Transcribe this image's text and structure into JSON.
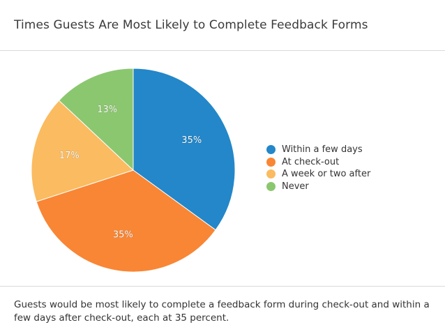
{
  "chart_data": {
    "type": "pie",
    "title": "Times Guests Are Most Likely to Complete Feedback Forms",
    "legend_position": "right",
    "slices": [
      {
        "label": "Within a few days",
        "value": 35,
        "value_label": "35%",
        "color": "#2387c9"
      },
      {
        "label": "At check-out",
        "value": 35,
        "value_label": "35%",
        "color": "#f98634"
      },
      {
        "label": "A week or two after",
        "value": 17,
        "value_label": "17%",
        "color": "#fbbb60"
      },
      {
        "label": "Never",
        "value": 13,
        "value_label": "13%",
        "color": "#8bc76f"
      }
    ]
  },
  "caption": "Guests would be most likely to complete a feedback form during check-out and within a few days after check-out, each at 35 percent."
}
